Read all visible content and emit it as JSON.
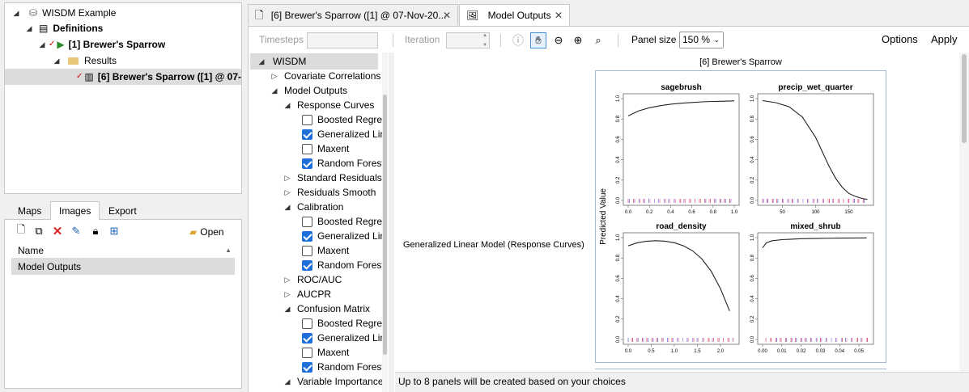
{
  "project_tree": {
    "root_label": "WISDM Example",
    "definitions_label": "Definitions",
    "scenario_label": "[1] Brewer's Sparrow",
    "results_label": "Results",
    "result_item_label": "[6] Brewer's Sparrow ([1] @ 07-"
  },
  "lower_tabs": {
    "maps": "Maps",
    "images": "Images",
    "export": "Export",
    "open_label": "Open",
    "column_name": "Name",
    "rows": [
      "Model Outputs"
    ]
  },
  "doc_tabs": {
    "tab1": "[6] Brewer's Sparrow ([1] @ 07-Nov-20...",
    "tab2": "Model Outputs",
    "close_glyph": "✕"
  },
  "toolbar": {
    "timesteps": "Timesteps",
    "iteration": "Iteration",
    "panel_size_label": "Panel size",
    "panel_size_value": "150 %",
    "options": "Options",
    "apply": "Apply"
  },
  "outputs_tree": {
    "root": "WISDM",
    "covariate_correlations": "Covariate Correlations",
    "model_outputs": "Model Outputs",
    "response_curves": "Response Curves",
    "standard_residuals": "Standard Residuals",
    "residuals_smooth": "Residuals Smooth",
    "calibration": "Calibration",
    "roc_auc": "ROC/AUC",
    "aucpr": "AUCPR",
    "confusion_matrix": "Confusion Matrix",
    "variable_importance": "Variable Importance",
    "models": {
      "boosted": "Boosted Regres",
      "glm": "Generalized Line",
      "maxent": "Maxent",
      "rf": "Random Forest"
    },
    "response_checks": [
      false,
      true,
      false,
      true
    ],
    "calibration_checks": [
      false,
      true,
      false,
      true
    ],
    "confusion_checks": [
      false,
      true,
      false,
      true
    ]
  },
  "viewer": {
    "image_title": "[6] Brewer's Sparrow",
    "row_label": "Generalized Linear Model (Response Curves)",
    "status": "Up to 8 panels will be created based on your choices"
  },
  "chart_data": {
    "type": "line",
    "ylabel": "Predicted Value",
    "panels": [
      {
        "title": "sagebrush",
        "xlim": [
          0,
          1
        ],
        "ylim": [
          0,
          1
        ],
        "xticks": [
          "0.0",
          "0.2",
          "0.4",
          "0.6",
          "0.8",
          "1.0"
        ],
        "yticks": [
          "0.0",
          "0.2",
          "0.4",
          "0.6",
          "0.8",
          "1.0"
        ],
        "x": [
          0,
          0.1,
          0.2,
          0.3,
          0.4,
          0.5,
          0.6,
          0.7,
          0.8,
          0.9,
          1.0
        ],
        "y": [
          0.83,
          0.88,
          0.91,
          0.93,
          0.945,
          0.955,
          0.962,
          0.968,
          0.972,
          0.975,
          0.978
        ]
      },
      {
        "title": "precip_wet_quarter",
        "xlim": [
          20,
          180
        ],
        "ylim": [
          0,
          1
        ],
        "xticks": [
          "50",
          "100",
          "150"
        ],
        "yticks": [
          "0.0",
          "0.2",
          "0.4",
          "0.6",
          "0.8",
          "1.0"
        ],
        "x": [
          20,
          40,
          60,
          80,
          100,
          110,
          120,
          130,
          140,
          150,
          160,
          170,
          178
        ],
        "y": [
          0.98,
          0.96,
          0.92,
          0.82,
          0.62,
          0.48,
          0.34,
          0.22,
          0.13,
          0.07,
          0.04,
          0.02,
          0.01
        ]
      },
      {
        "title": "road_density",
        "xlim": [
          0,
          2.3
        ],
        "ylim": [
          0,
          1
        ],
        "xticks": [
          "0.0",
          "0.5",
          "1.0",
          "1.5",
          "2.0"
        ],
        "yticks": [
          "0.0",
          "0.2",
          "0.4",
          "0.6",
          "0.8",
          "1.0"
        ],
        "x": [
          0,
          0.2,
          0.4,
          0.6,
          0.8,
          1.0,
          1.2,
          1.4,
          1.6,
          1.8,
          2.0,
          2.2
        ],
        "y": [
          0.92,
          0.95,
          0.965,
          0.97,
          0.965,
          0.95,
          0.92,
          0.87,
          0.79,
          0.67,
          0.5,
          0.28
        ]
      },
      {
        "title": "mixed_shrub",
        "xlim": [
          0,
          0.055
        ],
        "ylim": [
          0,
          1
        ],
        "xticks": [
          "0.00",
          "0.01",
          "0.02",
          "0.03",
          "0.04",
          "0.05"
        ],
        "yticks": [
          "0.0",
          "0.2",
          "0.4",
          "0.6",
          "0.8",
          "1.0"
        ],
        "x": [
          0,
          0.002,
          0.005,
          0.01,
          0.015,
          0.02,
          0.03,
          0.04,
          0.05,
          0.054
        ],
        "y": [
          0.9,
          0.95,
          0.97,
          0.98,
          0.985,
          0.99,
          0.993,
          0.995,
          0.997,
          0.998
        ]
      }
    ]
  }
}
